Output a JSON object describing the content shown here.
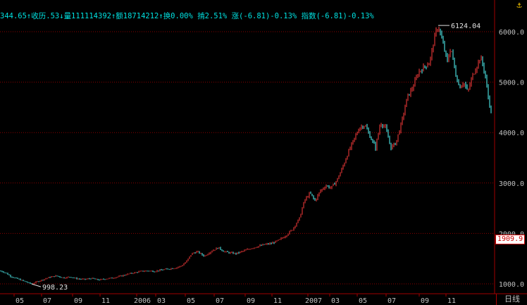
{
  "info_bar": {
    "open": "344.65↑",
    "close": "收历.53↓",
    "volume": "量111114392↑",
    "amount": "额18714212↑",
    "turnover": "换0.00%",
    "amplitude": "掯2.51%",
    "change": "涨(-6.81)-0.13%",
    "index": "指数(-6.81)-0.13%"
  },
  "icons": {
    "corner": "anchor-icon"
  },
  "timeframe_label": "日线",
  "last_price_label": "1909.9",
  "colors": {
    "up": "#ff3c3c",
    "down": "#54ffff",
    "grid": "#8b0000",
    "axis": "#a00000",
    "text": "#c0c0c0",
    "accent": "#00e0e0"
  },
  "chart_data": {
    "type": "candlestick",
    "ylim": [
      1000,
      6124.04
    ],
    "y_ticks": [
      "6000.0",
      "5000.0",
      "4000.0",
      "3000.0",
      "2000.0",
      "1000.0"
    ],
    "x_ticks": [
      "05",
      "07",
      "09",
      "11",
      "2006",
      "03",
      "05",
      "07",
      "09",
      "11",
      "2007",
      "03",
      "05",
      "07",
      "09",
      "11"
    ],
    "annotations": [
      {
        "label": "6124.04",
        "value": 6124.04
      },
      {
        "label": "998.23",
        "value": 998.23
      }
    ],
    "series_shape": [
      [
        0,
        1260
      ],
      [
        8,
        1220
      ],
      [
        15,
        1150
      ],
      [
        25,
        1100
      ],
      [
        35,
        1050
      ],
      [
        45,
        998.23
      ],
      [
        52,
        1040
      ],
      [
        60,
        1080
      ],
      [
        70,
        1130
      ],
      [
        80,
        1160
      ],
      [
        90,
        1120
      ],
      [
        100,
        1140
      ],
      [
        110,
        1100
      ],
      [
        120,
        1090
      ],
      [
        130,
        1110
      ],
      [
        140,
        1080
      ],
      [
        150,
        1100
      ],
      [
        160,
        1120
      ],
      [
        170,
        1150
      ],
      [
        180,
        1190
      ],
      [
        190,
        1220
      ],
      [
        200,
        1250
      ],
      [
        210,
        1260
      ],
      [
        220,
        1250
      ],
      [
        230,
        1280
      ],
      [
        240,
        1300
      ],
      [
        250,
        1320
      ],
      [
        258,
        1360
      ],
      [
        265,
        1450
      ],
      [
        272,
        1600
      ],
      [
        280,
        1640
      ],
      [
        290,
        1550
      ],
      [
        300,
        1650
      ],
      [
        310,
        1720
      ],
      [
        318,
        1640
      ],
      [
        325,
        1620
      ],
      [
        335,
        1600
      ],
      [
        345,
        1650
      ],
      [
        355,
        1700
      ],
      [
        365,
        1740
      ],
      [
        375,
        1780
      ],
      [
        385,
        1800
      ],
      [
        395,
        1860
      ],
      [
        405,
        1950
      ],
      [
        415,
        2080
      ],
      [
        425,
        2300
      ],
      [
        432,
        2650
      ],
      [
        440,
        2800
      ],
      [
        447,
        2650
      ],
      [
        455,
        2850
      ],
      [
        463,
        2950
      ],
      [
        470,
        2900
      ],
      [
        478,
        3050
      ],
      [
        486,
        3300
      ],
      [
        494,
        3600
      ],
      [
        502,
        3850
      ],
      [
        510,
        4100
      ],
      [
        518,
        4150
      ],
      [
        526,
        3900
      ],
      [
        533,
        3700
      ],
      [
        540,
        4200
      ],
      [
        547,
        4100
      ],
      [
        555,
        3700
      ],
      [
        562,
        3800
      ],
      [
        570,
        4200
      ],
      [
        578,
        4700
      ],
      [
        586,
        4900
      ],
      [
        594,
        5200
      ],
      [
        602,
        5300
      ],
      [
        610,
        5400
      ],
      [
        617,
        5900
      ],
      [
        622,
        6124.04
      ],
      [
        628,
        5800
      ],
      [
        635,
        5400
      ],
      [
        640,
        5700
      ],
      [
        646,
        5200
      ],
      [
        652,
        4900
      ],
      [
        658,
        5000
      ],
      [
        664,
        4800
      ],
      [
        670,
        5100
      ],
      [
        676,
        5300
      ],
      [
        682,
        5500
      ],
      [
        688,
        5200
      ],
      [
        693,
        4700
      ],
      [
        697,
        4400
      ]
    ]
  }
}
